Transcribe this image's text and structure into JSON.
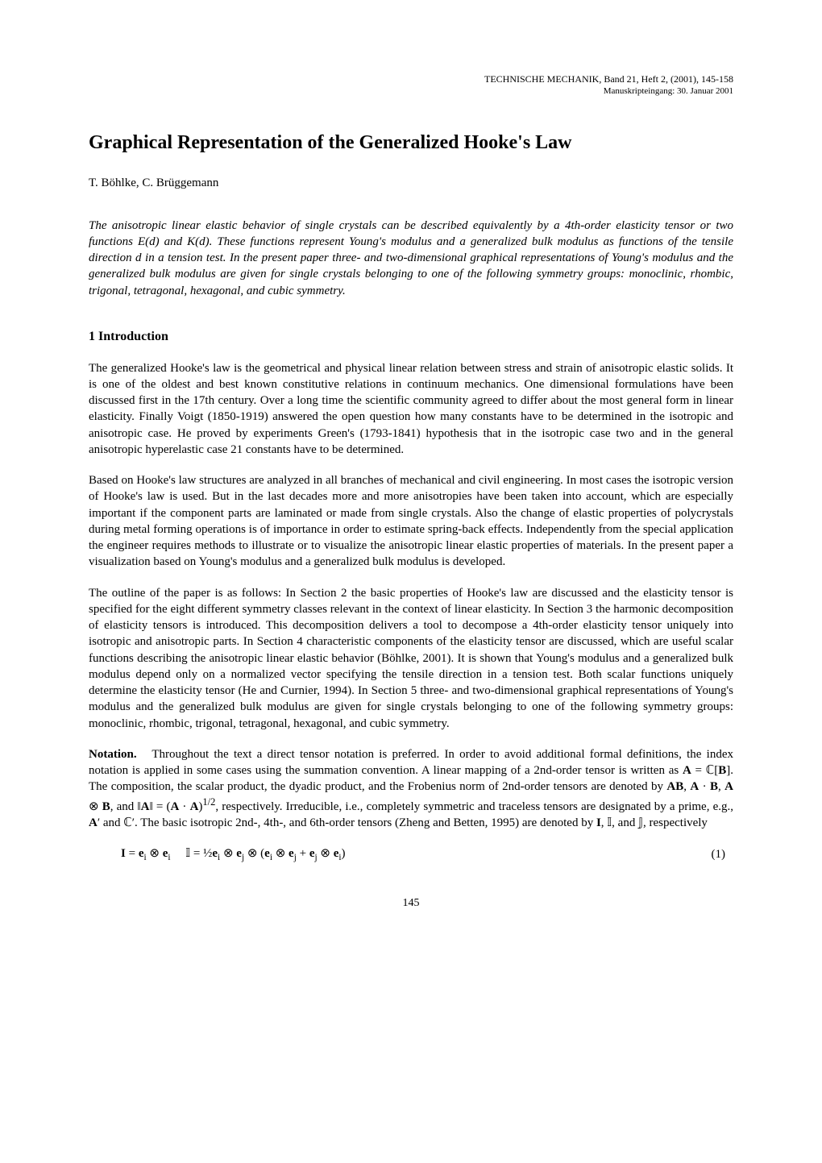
{
  "header": {
    "journal_line": "TECHNISCHE MECHANIK, Band 21, Heft 2, (2001), 145-158",
    "received_line": "Manuskripteingang: 30. Januar 2001"
  },
  "title": "Graphical Representation of the Generalized Hooke's Law",
  "authors": "T. Böhlke, C. Brüggemann",
  "abstract": "The anisotropic linear elastic behavior of single crystals can be described equivalently by a 4th-order elasticity tensor or two functions E(d) and K(d). These functions represent Young's modulus and a generalized bulk modulus as functions of the tensile direction d in a tension test. In the present paper three- and two-dimensional graphical representations of Young's modulus and the generalized bulk modulus are given for single crystals belonging to one of the following symmetry groups: monoclinic, rhombic, trigonal, tetragonal, hexagonal, and cubic symmetry.",
  "section1": {
    "heading": "1  Introduction",
    "p1": "The generalized Hooke's law is the geometrical and physical linear relation between stress and strain of anisotropic elastic solids. It is one of the oldest and best known constitutive relations in continuum mechanics. One dimensional formulations have been discussed first in the 17th century. Over a long time the scientific community agreed to differ about the most general form in linear elasticity. Finally Voigt (1850-1919) answered the open question how many constants have to be determined in the isotropic and anisotropic case. He proved by experiments Green's (1793-1841) hypothesis that in the isotropic case two and in the general anisotropic hyperelastic case 21 constants have to be determined.",
    "p2": "Based on Hooke's law structures are analyzed in all branches of mechanical and civil engineering. In most cases the isotropic version of Hooke's law is used. But in the last decades more and more anisotropies have been taken into account, which are especially important if the component parts are laminated or made from single crystals. Also the change of elastic properties of polycrystals during metal forming operations is of importance in order to estimate spring-back effects. Independently from the special application the engineer requires methods to illustrate or to visualize the anisotropic linear elastic properties of materials. In the present paper a visualization based on Young's modulus and a generalized bulk modulus is developed.",
    "p3": "The outline of the paper is as follows: In Section 2 the basic properties of Hooke's law are discussed and the elasticity tensor is specified for the eight different symmetry classes relevant in the context of linear elasticity. In Section 3 the harmonic decomposition of elasticity tensors is introduced. This decomposition delivers a tool to decompose a 4th-order elasticity tensor uniquely into isotropic and anisotropic parts. In Section 4 characteristic components of the elasticity tensor are discussed, which are useful scalar functions describing the anisotropic linear elastic behavior (Böhlke, 2001). It is shown that Young's modulus and a generalized bulk modulus depend only on a normalized vector specifying the tensile direction in a tension test. Both scalar functions uniquely determine the elasticity tensor (He and Curnier, 1994). In Section 5 three- and two-dimensional graphical representations of Young's modulus and the generalized bulk modulus are given for single crystals belonging to one of the following symmetry groups: monoclinic, rhombic, trigonal, tetragonal, hexagonal, and cubic symmetry."
  },
  "notation": {
    "label": "Notation.",
    "text_before_eq": "Throughout the text a direct tensor notation is preferred. In order to avoid additional formal definitions, the index notation is applied in some cases using the summation convention. A linear mapping of a 2nd-order tensor is written as A = ℂ[B]. The composition, the scalar product, the dyadic product, and the Frobenius norm of 2nd-order tensors are denoted by AB, A · B, A ⊗ B, and ‖A‖ = (A · A)^{1/2}, respectively. Irreducible, i.e., completely symmetric and traceless tensors are designated by a prime, e.g., A′ and ℂ′. The basic isotropic 2nd-, 4th-, and 6th-order tensors (Zheng and Betten, 1995) are denoted by I, 𝕀, and 𝕁, respectively"
  },
  "equation": {
    "number": "(1)",
    "symbols": {
      "I_bold": "I",
      "eq": " = ",
      "e_i": "e",
      "sub_i": "i",
      "sub_j": "j",
      "otimes": " ⊗ ",
      "Ibb": "𝕀",
      "half": "½",
      "plus": " + ",
      "lparen": "(",
      "rparen": ")"
    }
  },
  "page_number": "145",
  "style": {
    "background_color": "#ffffff",
    "text_color": "#000000",
    "title_fontsize": 24,
    "body_fontsize": 15,
    "header_fontsize": 12
  }
}
